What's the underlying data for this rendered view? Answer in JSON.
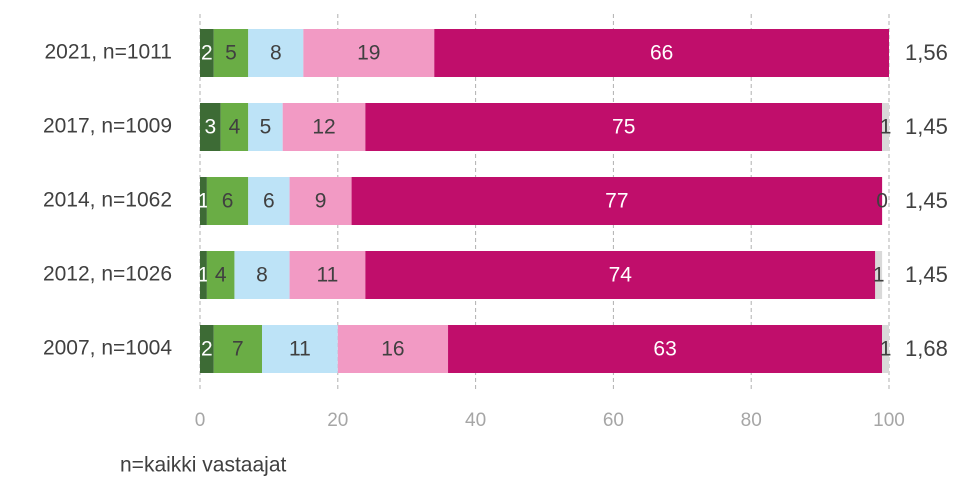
{
  "chart_data": {
    "type": "stacked-bar-horizontal",
    "categories": [
      "2021, n=1011",
      "2017, n=1009",
      "2014, n=1062",
      "2012, n=1026",
      "2007, n=1004"
    ],
    "series": [
      {
        "color": "#3d6b35",
        "label_color": "#ffffff",
        "values": [
          2,
          3,
          1,
          1,
          2
        ]
      },
      {
        "color": "#6aad45",
        "label_color": "#404040",
        "values": [
          5,
          4,
          6,
          4,
          7
        ]
      },
      {
        "color": "#bde3f7",
        "label_color": "#404040",
        "values": [
          8,
          5,
          6,
          8,
          11
        ]
      },
      {
        "color": "#f29ac4",
        "label_color": "#404040",
        "values": [
          19,
          12,
          9,
          11,
          16
        ]
      },
      {
        "color": "#c00e6b",
        "label_color": "#ffffff",
        "values": [
          66,
          75,
          77,
          74,
          63
        ]
      },
      {
        "color": "#d9d9d9",
        "label_color": "#404040",
        "values": [
          null,
          1,
          0,
          1,
          1
        ]
      }
    ],
    "averages": {
      "values": [
        1.56,
        1.45,
        1.45,
        1.45,
        1.68
      ],
      "value_labels": [
        "1,56",
        "1,45",
        "1,45",
        "1,45",
        "1,68"
      ]
    },
    "xlim": [
      0,
      100
    ],
    "xticks": [
      0,
      20,
      40,
      60,
      80,
      100
    ],
    "grid": true,
    "footnote": "n=kaikki vastaajat"
  }
}
